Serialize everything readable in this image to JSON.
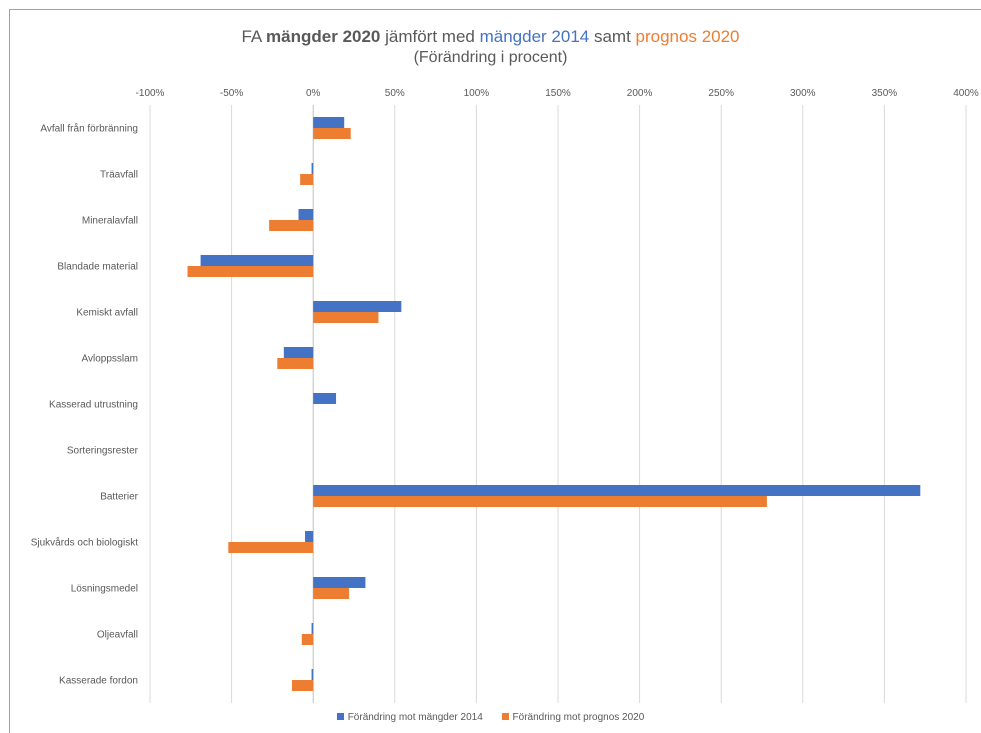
{
  "title": {
    "p1": "FA ",
    "p2": "mängder 2020",
    "p3": " jämfört med ",
    "p4": "mängder 2014",
    "p5": " samt ",
    "p6": "prognos 2020",
    "subtitle": "(Förändring i procent)"
  },
  "colors": {
    "series1": "#4472c4",
    "series2": "#ed7d31",
    "grid": "#d9d9d9",
    "axis": "#bfbfbf",
    "text": "#595959"
  },
  "chart_data": {
    "type": "bar",
    "orientation": "horizontal",
    "title": "FA mängder 2020 jämfört med mängder 2014 samt prognos 2020",
    "subtitle": "(Förändring i procent)",
    "xlim": [
      -100,
      400
    ],
    "x_ticks": [
      -100,
      -50,
      0,
      50,
      100,
      150,
      200,
      250,
      300,
      350,
      400
    ],
    "x_tick_labels": [
      "-100%",
      "-50%",
      "0%",
      "50%",
      "100%",
      "150%",
      "200%",
      "250%",
      "300%",
      "350%",
      "400%"
    ],
    "x_axis_position": "top",
    "grid": true,
    "legend_position": "bottom",
    "categories": [
      "Avfall från förbränning",
      "Träavfall",
      "Mineralavfall",
      "Blandade material",
      "Kemiskt avfall",
      "Avloppsslam",
      "Kasserad utrustning",
      "Sorteringsrester",
      "Batterier",
      "Sjukvårds och biologiskt",
      "Lösningsmedel",
      "Oljeavfall",
      "Kasserade fordon"
    ],
    "series": [
      {
        "name": "Förändring mot mängder 2014",
        "values": [
          19,
          -1,
          -9,
          -69,
          54,
          -18,
          14,
          0,
          372,
          -5,
          32,
          -1,
          -1
        ]
      },
      {
        "name": "Förändring mot prognos 2020",
        "values": [
          23,
          -8,
          -27,
          -77,
          40,
          -22,
          0,
          0,
          278,
          -52,
          22,
          -7,
          -13
        ]
      }
    ]
  }
}
